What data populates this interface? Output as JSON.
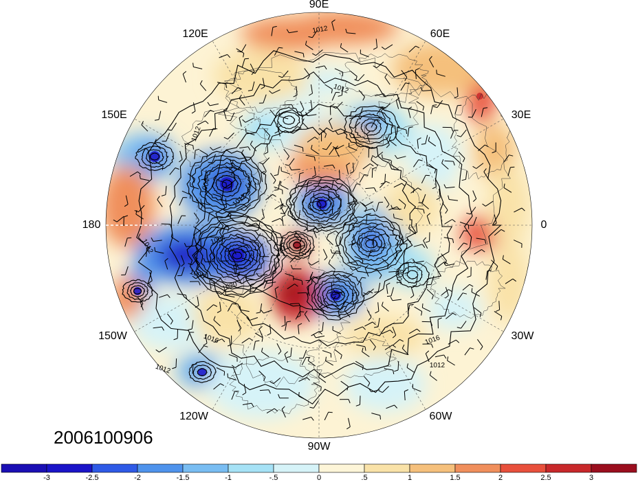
{
  "map": {
    "projection": "north-polar-stereographic",
    "timestamp": "2006100906",
    "longitude_labels": [
      "90E",
      "60E",
      "30E",
      "0",
      "30W",
      "60W",
      "90W",
      "120W",
      "150W",
      "180",
      "150E",
      "120E"
    ],
    "contour_labels": [
      "1012",
      "1012",
      "1012",
      "1004",
      "1012",
      "1012",
      "1004",
      "1008",
      "1020",
      "1016",
      "1012",
      "1016",
      "1012",
      "1008"
    ]
  },
  "colorbar": {
    "ticks": [
      "-3",
      "-2.5",
      "-2",
      "-1.5",
      "-1",
      "-.5",
      "0",
      ".5",
      "1",
      "1.5",
      "2",
      "2.5",
      "3"
    ],
    "colors": [
      "#1a14c8",
      "#2e5ae6",
      "#4f93ec",
      "#79bdf2",
      "#a6e2f6",
      "#d6f3f8",
      "#fdf5d8",
      "#f9e2a8",
      "#f5c07c",
      "#f08f5c",
      "#e8503c",
      "#c8282a",
      "#9a0e1e"
    ]
  },
  "chart_data": {
    "type": "heatmap",
    "field_min": -3,
    "field_max": 3,
    "contour_interval": 4,
    "features": {
      "lows": [
        {
          "lon": 170,
          "lat": 40,
          "color": "blue"
        },
        {
          "lon": 140,
          "lat": 55,
          "color": "blue"
        },
        {
          "lon": 195,
          "lat": 55,
          "color": "blue"
        },
        {
          "lon": 120,
          "lat": 72,
          "color": "blue"
        },
        {
          "lon": 350,
          "lat": 65,
          "color": "blue"
        },
        {
          "lon": 270,
          "lat": 75,
          "color": "blue"
        },
        {
          "lon": 210,
          "lat": 40,
          "color": "blue"
        },
        {
          "lon": 230,
          "lat": 30,
          "color": "blue"
        }
      ],
      "highs": [
        {
          "lon": 300,
          "lat": 80,
          "color": "red"
        },
        {
          "lon": 240,
          "lat": 72,
          "color": "red"
        },
        {
          "lon": 45,
          "lat": 45,
          "color": "red"
        },
        {
          "lon": 5,
          "lat": 45,
          "color": "red"
        },
        {
          "lon": 90,
          "lat": 20,
          "color": "red"
        }
      ]
    }
  }
}
